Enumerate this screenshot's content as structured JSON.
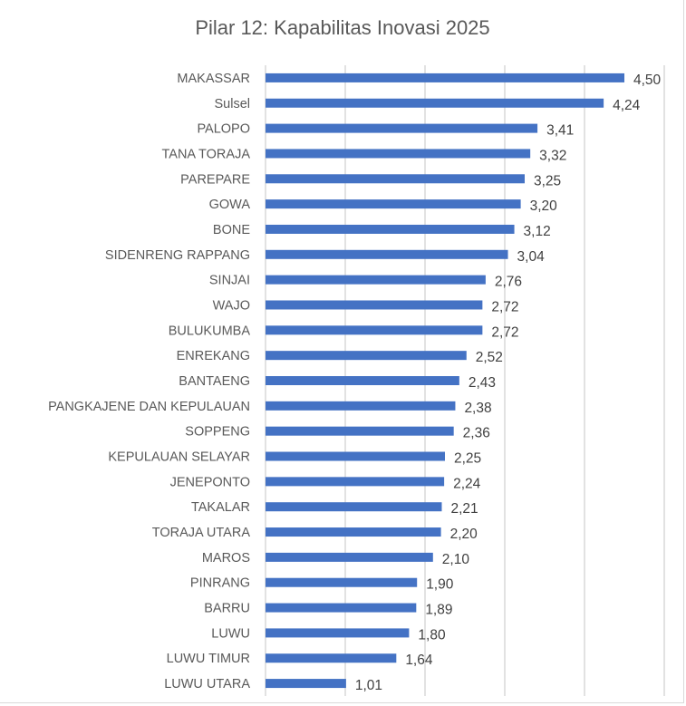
{
  "chart_data": {
    "type": "bar",
    "orientation": "horizontal",
    "title": "Pilar 12: Kapabilitas Inovasi 2025",
    "xlabel": "",
    "ylabel": "",
    "xlim": [
      0,
      5
    ],
    "grid": true,
    "legend": "none",
    "bar_color": "#4472c4",
    "categories": [
      "MAKASSAR",
      "Sulsel",
      "PALOPO",
      "TANA TORAJA",
      "PAREPARE",
      "GOWA",
      "BONE",
      "SIDENRENG RAPPANG",
      "SINJAI",
      "WAJO",
      "BULUKUMBA",
      "ENREKANG",
      "BANTAENG",
      "PANGKAJENE DAN KEPULAUAN",
      "SOPPENG",
      "KEPULAUAN SELAYAR",
      "JENEPONTO",
      "TAKALAR",
      "TORAJA UTARA",
      "MAROS",
      "PINRANG",
      "BARRU",
      "LUWU",
      "LUWU TIMUR",
      "LUWU UTARA"
    ],
    "values": [
      4.5,
      4.24,
      3.41,
      3.32,
      3.25,
      3.2,
      3.12,
      3.04,
      2.76,
      2.72,
      2.72,
      2.52,
      2.43,
      2.38,
      2.36,
      2.25,
      2.24,
      2.21,
      2.2,
      2.1,
      1.9,
      1.89,
      1.8,
      1.64,
      1.01
    ],
    "data_labels": [
      "4,50",
      "4,24",
      "3,41",
      "3,32",
      "3,25",
      "3,20",
      "3,12",
      "3,04",
      "2,76",
      "2,72",
      "2,72",
      "2,52",
      "2,43",
      "2,38",
      "2,36",
      "2,25",
      "2,24",
      "2,21",
      "2,20",
      "2,10",
      "1,90",
      "1,89",
      "1,80",
      "1,64",
      "1,01"
    ]
  }
}
